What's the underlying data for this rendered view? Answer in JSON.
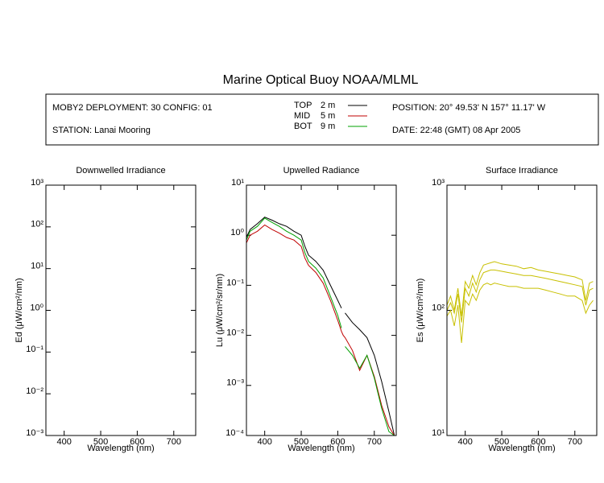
{
  "title": "Marine Optical Buoy NOAA/MLML",
  "info": {
    "deployment": "MOBY2 DEPLOYMENT: 30 CONFIG: 01",
    "station": "STATION: Lanai Mooring",
    "position": "POSITION: 20° 49.53' N   157° 11.17' W",
    "date": "DATE: 22:48 (GMT) 08 Apr 2005"
  },
  "chart_data": [
    {
      "type": "line",
      "title": "Downwelled Irradiance",
      "xlabel": "Wavelength (nm)",
      "ylabel": "Ed  (μW/cm²/nm)",
      "yscale": "log",
      "xlim": [
        350,
        760
      ],
      "xticks": [
        400,
        500,
        600,
        700
      ],
      "ylim": [
        0.001,
        1000
      ],
      "yticks": [
        {
          "value": 0.001,
          "label": "10⁻³"
        },
        {
          "value": 0.01,
          "label": "10⁻²"
        },
        {
          "value": 0.1,
          "label": "10⁻¹"
        },
        {
          "value": 1,
          "label": "10⁰"
        },
        {
          "value": 10,
          "label": "10¹"
        },
        {
          "value": 100,
          "label": "10²"
        },
        {
          "value": 1000,
          "label": "10³"
        }
      ]
    },
    {
      "type": "line",
      "title": "Upwelled Radiance",
      "xlabel": "Wavelength (nm)",
      "ylabel": "Lu  (μW/cm²/sr/nm)",
      "yscale": "log",
      "xlim": [
        350,
        760
      ],
      "xticks": [
        400,
        500,
        600,
        700
      ],
      "ylim": [
        0.0001,
        10
      ],
      "yticks": [
        {
          "value": 0.0001,
          "label": "10⁻⁴"
        },
        {
          "value": 0.001,
          "label": "10⁻³"
        },
        {
          "value": 0.01,
          "label": "10⁻²"
        },
        {
          "value": 0.1,
          "label": "10⁻¹"
        },
        {
          "value": 1,
          "label": "10⁰"
        },
        {
          "value": 10,
          "label": "10¹"
        }
      ],
      "x": [
        350,
        360,
        380,
        400,
        420,
        440,
        460,
        480,
        500,
        510,
        520,
        540,
        560,
        580,
        600,
        610,
        615,
        620,
        640,
        660,
        680,
        700,
        720,
        740,
        755
      ],
      "series": [
        {
          "name": "TOP",
          "depth": "2 m",
          "color": "#000000",
          "values": [
            0.9,
            1.3,
            1.7,
            2.3,
            2.0,
            1.7,
            1.5,
            1.2,
            1.0,
            0.6,
            0.4,
            0.3,
            0.2,
            0.1,
            0.05,
            0.035,
            null,
            0.028,
            0.018,
            0.013,
            0.009,
            0.004,
            0.0012,
            0.0003,
            0.0001
          ]
        },
        {
          "name": "MID",
          "depth": "5 m",
          "color": "#c00000",
          "values": [
            0.7,
            1.0,
            1.2,
            1.6,
            1.3,
            1.1,
            0.9,
            0.8,
            0.6,
            0.35,
            0.25,
            0.18,
            0.11,
            0.05,
            0.02,
            0.012,
            0.01,
            0.009,
            0.005,
            0.002,
            0.004,
            0.0015,
            0.0004,
            0.00015,
            0.0001
          ]
        },
        {
          "name": "BOT",
          "depth": "9 m",
          "color": "#00a000",
          "values": [
            0.8,
            1.2,
            1.5,
            2.2,
            1.8,
            1.5,
            1.2,
            1.0,
            0.8,
            0.45,
            0.3,
            0.22,
            0.14,
            0.06,
            0.025,
            0.014,
            null,
            0.006,
            0.004,
            0.0022,
            0.004,
            0.0014,
            0.00035,
            0.00012,
            0.0001
          ]
        }
      ]
    },
    {
      "type": "line",
      "title": "Surface Irradiance",
      "xlabel": "Wavelength (nm)",
      "ylabel": "Es  (μW/cm²/nm)",
      "yscale": "log",
      "xlim": [
        350,
        760
      ],
      "xticks": [
        400,
        500,
        600,
        700
      ],
      "ylim": [
        10,
        1000
      ],
      "yticks": [
        {
          "value": 10,
          "label": "10¹"
        },
        {
          "value": 100,
          "label": "10²"
        },
        {
          "value": 1000,
          "label": "10³"
        }
      ],
      "x": [
        350,
        360,
        370,
        380,
        390,
        400,
        410,
        420,
        430,
        440,
        450,
        460,
        470,
        480,
        500,
        520,
        540,
        560,
        580,
        600,
        620,
        640,
        660,
        680,
        700,
        720,
        730,
        740,
        750
      ],
      "series": [
        {
          "color": "#c8c000",
          "values": [
            110,
            130,
            100,
            150,
            90,
            170,
            150,
            190,
            160,
            200,
            230,
            235,
            240,
            245,
            235,
            230,
            225,
            215,
            220,
            210,
            205,
            200,
            195,
            190,
            185,
            175,
            120,
            165,
            170
          ]
        },
        {
          "color": "#c8c000",
          "values": [
            100,
            115,
            95,
            135,
            80,
            150,
            130,
            165,
            140,
            175,
            200,
            205,
            210,
            210,
            205,
            200,
            195,
            190,
            190,
            185,
            180,
            175,
            170,
            165,
            160,
            155,
            110,
            145,
            150
          ]
        },
        {
          "color": "#c8c000",
          "values": [
            90,
            100,
            75,
            110,
            55,
            120,
            110,
            135,
            120,
            145,
            160,
            165,
            160,
            165,
            160,
            155,
            155,
            150,
            150,
            150,
            145,
            140,
            135,
            130,
            130,
            120,
            95,
            110,
            120
          ]
        }
      ]
    }
  ]
}
